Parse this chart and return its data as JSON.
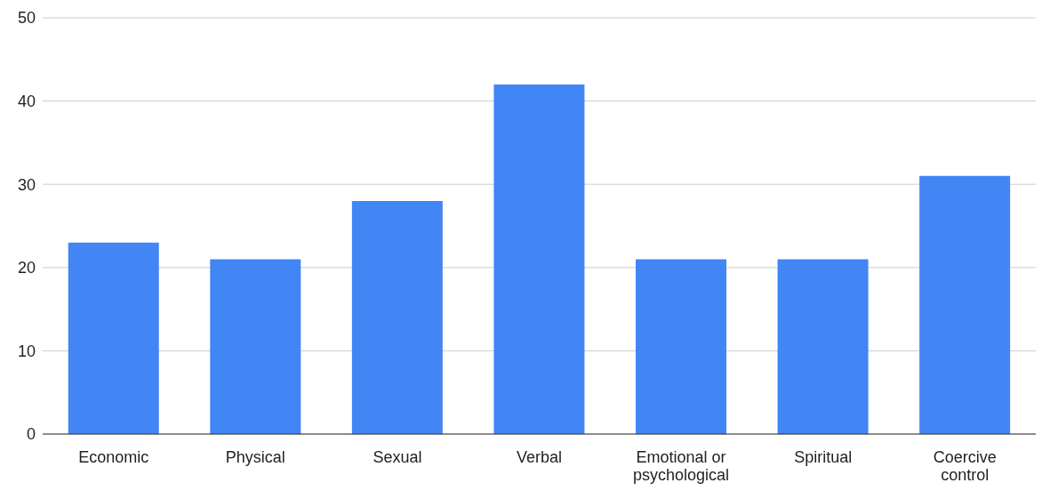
{
  "chart_data": {
    "type": "bar",
    "categories": [
      "Economic",
      "Physical",
      "Sexual",
      "Verbal",
      "Emotional or psychological",
      "Spiritual",
      "Coercive control"
    ],
    "values": [
      23,
      21,
      28,
      42,
      21,
      21,
      31
    ],
    "color": "#4285f4",
    "ylim": [
      0,
      50
    ],
    "yticks": [
      0,
      10,
      20,
      30,
      40,
      50
    ],
    "grid": "y"
  }
}
